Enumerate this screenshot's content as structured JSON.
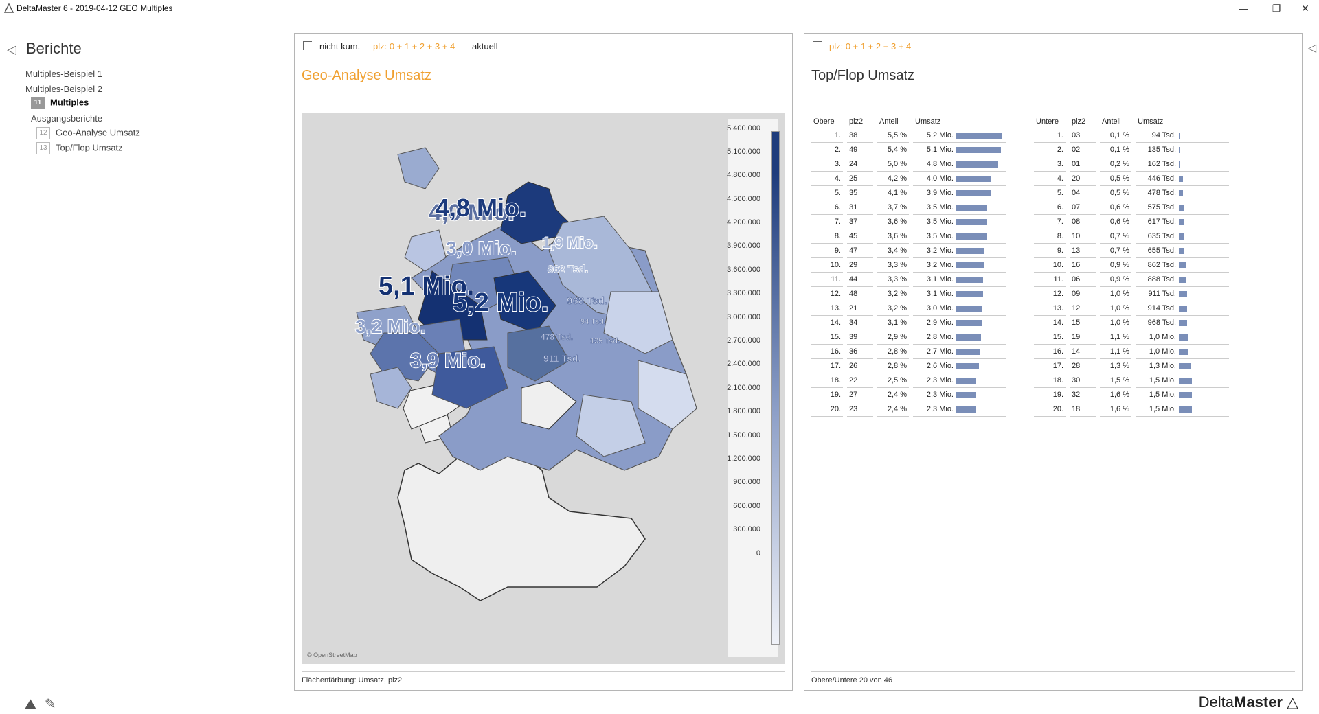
{
  "window": {
    "title": "DeltaMaster 6 - 2019-04-12 GEO Multiples",
    "min": "—",
    "restore": "❐",
    "close": "✕"
  },
  "sidebar": {
    "title": "Berichte",
    "items": [
      {
        "label": "Multiples-Beispiel 1"
      },
      {
        "label": "Multiples-Beispiel 2"
      },
      {
        "badge": "11",
        "label": "Multiples"
      },
      {
        "label": "Ausgangsberichte"
      },
      {
        "badge": "12",
        "label": "Geo-Analyse Umsatz"
      },
      {
        "badge": "13",
        "label": "Top/Flop Umsatz"
      }
    ]
  },
  "left_panel": {
    "toolbar": {
      "item1": "nicht kum.",
      "item2": "plz: 0 + 1 + 2 + 3 + 4",
      "item3": "aktuell"
    },
    "title": "Geo-Analyse Umsatz",
    "map": {
      "attribution": "© OpenStreetMap",
      "labels": [
        "4,8 Mio.",
        "4,0 Mio.",
        "3,0 Mio.",
        "1,9 Mio.",
        "862 Tsd.",
        "5,1 Mio.",
        "5,2 Mio.",
        "968 Tsd.",
        "94 Tsd.",
        "3,2 Mio.",
        "478 Tsd.",
        "135 Tsd.",
        "911 Tsd.",
        "3,9 Mio."
      ]
    },
    "legend": [
      "5.400.000",
      "5.100.000",
      "4.800.000",
      "4.500.000",
      "4.200.000",
      "3.900.000",
      "3.600.000",
      "3.300.000",
      "3.000.000",
      "2.700.000",
      "2.400.000",
      "2.100.000",
      "1.800.000",
      "1.500.000",
      "1.200.000",
      "900.000",
      "600.000",
      "300.000",
      "0"
    ],
    "footer": "Flächenfärbung: Umsatz, plz2"
  },
  "right_panel": {
    "toolbar": {
      "item1": "plz: 0 + 1 + 2 + 3 + 4"
    },
    "title": "Top/Flop Umsatz",
    "top": {
      "headers": [
        "Obere",
        "plz2",
        "Anteil",
        "Umsatz"
      ],
      "rows": [
        [
          "1.",
          "38",
          "5,5 %",
          "5,2 Mio.",
          5.2
        ],
        [
          "2.",
          "49",
          "5,4 %",
          "5,1 Mio.",
          5.1
        ],
        [
          "3.",
          "24",
          "5,0 %",
          "4,8 Mio.",
          4.8
        ],
        [
          "4.",
          "25",
          "4,2 %",
          "4,0 Mio.",
          4.0
        ],
        [
          "5.",
          "35",
          "4,1 %",
          "3,9 Mio.",
          3.9
        ],
        [
          "6.",
          "31",
          "3,7 %",
          "3,5 Mio.",
          3.5
        ],
        [
          "7.",
          "37",
          "3,6 %",
          "3,5 Mio.",
          3.5
        ],
        [
          "8.",
          "45",
          "3,6 %",
          "3,5 Mio.",
          3.5
        ],
        [
          "9.",
          "47",
          "3,4 %",
          "3,2 Mio.",
          3.2
        ],
        [
          "10.",
          "29",
          "3,3 %",
          "3,2 Mio.",
          3.2
        ],
        [
          "11.",
          "44",
          "3,3 %",
          "3,1 Mio.",
          3.1
        ],
        [
          "12.",
          "48",
          "3,2 %",
          "3,1 Mio.",
          3.1
        ],
        [
          "13.",
          "21",
          "3,2 %",
          "3,0 Mio.",
          3.0
        ],
        [
          "14.",
          "34",
          "3,1 %",
          "2,9 Mio.",
          2.9
        ],
        [
          "15.",
          "39",
          "2,9 %",
          "2,8 Mio.",
          2.8
        ],
        [
          "16.",
          "36",
          "2,8 %",
          "2,7 Mio.",
          2.7
        ],
        [
          "17.",
          "26",
          "2,8 %",
          "2,6 Mio.",
          2.6
        ],
        [
          "18.",
          "22",
          "2,5 %",
          "2,3 Mio.",
          2.3
        ],
        [
          "19.",
          "27",
          "2,4 %",
          "2,3 Mio.",
          2.3
        ],
        [
          "20.",
          "23",
          "2,4 %",
          "2,3 Mio.",
          2.3
        ]
      ]
    },
    "bottom": {
      "headers": [
        "Untere",
        "plz2",
        "Anteil",
        "Umsatz"
      ],
      "rows": [
        [
          "1.",
          "03",
          "0,1 %",
          "94 Tsd.",
          0.094
        ],
        [
          "2.",
          "02",
          "0,1 %",
          "135 Tsd.",
          0.135
        ],
        [
          "3.",
          "01",
          "0,2 %",
          "162 Tsd.",
          0.162
        ],
        [
          "4.",
          "20",
          "0,5 %",
          "446 Tsd.",
          0.446
        ],
        [
          "5.",
          "04",
          "0,5 %",
          "478 Tsd.",
          0.478
        ],
        [
          "6.",
          "07",
          "0,6 %",
          "575 Tsd.",
          0.575
        ],
        [
          "7.",
          "08",
          "0,6 %",
          "617 Tsd.",
          0.617
        ],
        [
          "8.",
          "10",
          "0,7 %",
          "635 Tsd.",
          0.635
        ],
        [
          "9.",
          "13",
          "0,7 %",
          "655 Tsd.",
          0.655
        ],
        [
          "10.",
          "16",
          "0,9 %",
          "862 Tsd.",
          0.862
        ],
        [
          "11.",
          "06",
          "0,9 %",
          "888 Tsd.",
          0.888
        ],
        [
          "12.",
          "09",
          "1,0 %",
          "911 Tsd.",
          0.911
        ],
        [
          "13.",
          "12",
          "1,0 %",
          "914 Tsd.",
          0.914
        ],
        [
          "14.",
          "15",
          "1,0 %",
          "968 Tsd.",
          0.968
        ],
        [
          "15.",
          "19",
          "1,1 %",
          "1,0 Mio.",
          1.0
        ],
        [
          "16.",
          "14",
          "1,1 %",
          "1,0 Mio.",
          1.0
        ],
        [
          "17.",
          "28",
          "1,3 %",
          "1,3 Mio.",
          1.3
        ],
        [
          "18.",
          "30",
          "1,5 %",
          "1,5 Mio.",
          1.5
        ],
        [
          "19.",
          "32",
          "1,6 %",
          "1,5 Mio.",
          1.5
        ],
        [
          "20.",
          "18",
          "1,6 %",
          "1,5 Mio.",
          1.5
        ]
      ]
    },
    "footer": "Obere/Untere 20 von 46"
  },
  "brand": {
    "a": "Delta",
    "b": "Master"
  }
}
